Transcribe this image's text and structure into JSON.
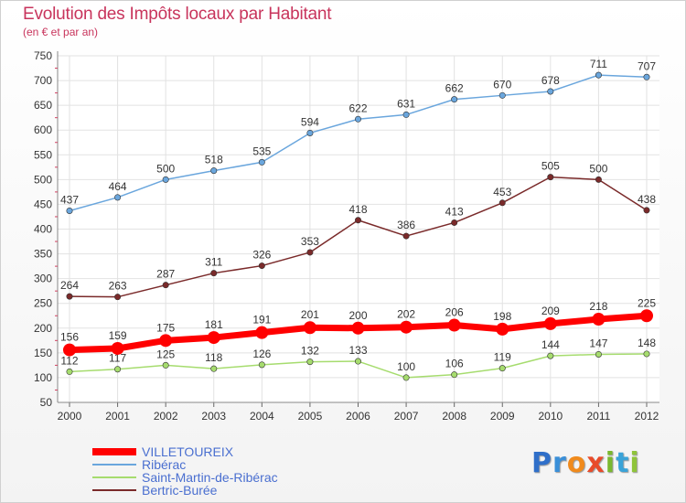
{
  "header": {
    "title": "Evolution des Impôts locaux par Habitant",
    "subtitle": "(en € et par an)"
  },
  "logo": {
    "letters": [
      "P",
      "r",
      "o",
      "x",
      "i",
      "t",
      "i"
    ],
    "colors": [
      "#2f6fc9",
      "#3a8fd8",
      "#f08a1c",
      "#e84b2a",
      "#7ab82e",
      "#3aa3d8",
      "#8fc43a"
    ]
  },
  "chart_data": {
    "type": "line",
    "title": "Evolution des Impôts locaux par Habitant",
    "subtitle": "(en € et par an)",
    "xlabel": "",
    "ylabel": "",
    "x": [
      "2000",
      "2001",
      "2002",
      "2003",
      "2004",
      "2005",
      "2006",
      "2007",
      "2008",
      "2009",
      "2010",
      "2011",
      "2012"
    ],
    "ylim": [
      50,
      750
    ],
    "yticks": [
      50,
      100,
      150,
      200,
      250,
      300,
      350,
      400,
      450,
      500,
      550,
      600,
      650,
      700,
      750
    ],
    "grid": true,
    "legend_position": "bottom-left",
    "series": [
      {
        "name": "VILLETOUREIX",
        "color": "#ff0000",
        "emphasis": true,
        "values": [
          156,
          159,
          175,
          181,
          191,
          201,
          200,
          202,
          206,
          198,
          209,
          218,
          225
        ]
      },
      {
        "name": "Ribérac",
        "color": "#6aa6dd",
        "emphasis": false,
        "values": [
          437,
          464,
          500,
          518,
          535,
          594,
          622,
          631,
          662,
          670,
          678,
          711,
          707
        ]
      },
      {
        "name": "Saint-Martin-de-Ribérac",
        "color": "#a6dc6e",
        "emphasis": false,
        "values": [
          112,
          117,
          125,
          118,
          126,
          132,
          133,
          100,
          106,
          119,
          144,
          147,
          148
        ]
      },
      {
        "name": "Bertric-Burée",
        "color": "#7a2a2a",
        "emphasis": false,
        "values": [
          264,
          263,
          287,
          311,
          326,
          353,
          418,
          386,
          413,
          453,
          505,
          500,
          438
        ]
      }
    ]
  }
}
